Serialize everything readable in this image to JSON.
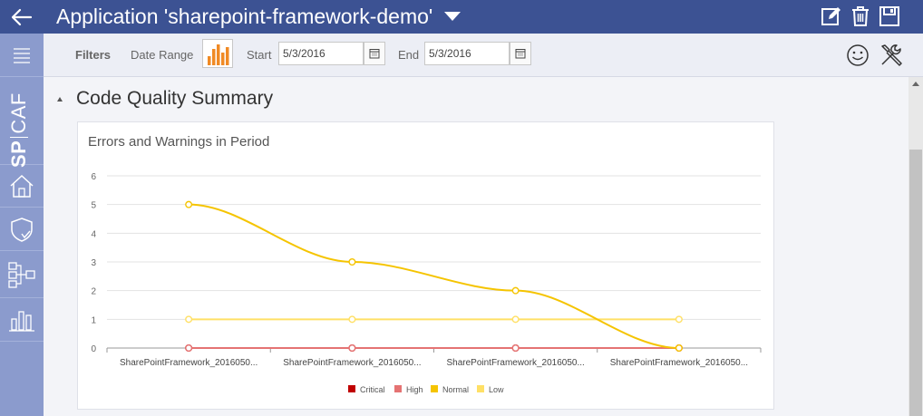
{
  "header": {
    "title": "Application 'sharepoint-framework-demo'",
    "actions": [
      "edit-icon",
      "trash-icon",
      "save-icon"
    ]
  },
  "sidebar": {
    "logo_bold": "SP",
    "logo_light": "CAF",
    "items": [
      "menu-icon",
      "home-icon",
      "shield-icon",
      "workflow-icon",
      "bar-chart-icon"
    ]
  },
  "filters": {
    "filters_label": "Filters",
    "date_range_label": "Date Range",
    "start_label": "Start",
    "start_value": "5/3/2016",
    "end_label": "End",
    "end_value": "5/3/2016"
  },
  "section": {
    "title": "Code Quality Summary"
  },
  "colors": {
    "header": "#3c5293",
    "sidebar": "#8b9bcd",
    "critical": "#c00000",
    "high": "#e57373",
    "normal": "#f5c400",
    "low": "#ffe066"
  },
  "chart_data": {
    "type": "line",
    "title": "Errors and Warnings in Period",
    "categories": [
      "SharePointFramework_2016050...",
      "SharePointFramework_2016050...",
      "SharePointFramework_2016050...",
      "SharePointFramework_2016050..."
    ],
    "series": [
      {
        "name": "Critical",
        "color": "#c00000",
        "values": [
          0,
          0,
          0,
          0
        ]
      },
      {
        "name": "High",
        "color": "#e57373",
        "values": [
          0,
          0,
          0,
          0
        ]
      },
      {
        "name": "Normal",
        "color": "#f5c400",
        "values": [
          5,
          3,
          2,
          0
        ]
      },
      {
        "name": "Low",
        "color": "#ffe066",
        "values": [
          1,
          1,
          1,
          1
        ]
      }
    ],
    "ylim": [
      0,
      6
    ],
    "yticks": [
      0,
      1,
      2,
      3,
      4,
      5,
      6
    ],
    "grid": true,
    "legend": "bottom"
  }
}
